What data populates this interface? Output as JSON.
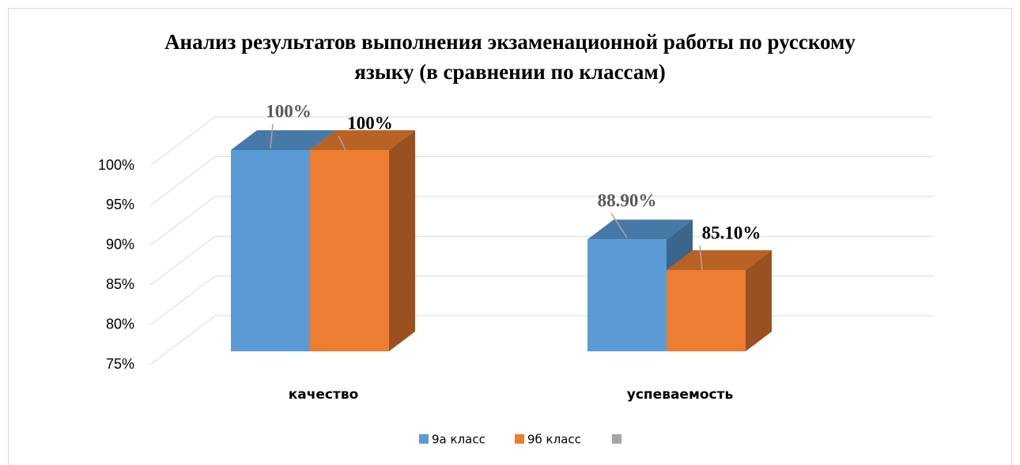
{
  "chart_data": {
    "type": "bar3d",
    "title": "Анализ результатов выполнения экзаменационной работы по русскому языку (в сравнении по классам)",
    "categories": [
      "качество",
      "успеваемость"
    ],
    "series": [
      {
        "name": "9а класс",
        "color": "#5b9bd5",
        "values": [
          100,
          88.9
        ],
        "value_labels": [
          "100%",
          "88.90%"
        ]
      },
      {
        "name": "9б класс",
        "color": "#ed7d31",
        "values": [
          100,
          85.1
        ],
        "value_labels": [
          "100%",
          "85.10%"
        ]
      },
      {
        "color": "#a5a5a5",
        "values": [
          null,
          null
        ]
      }
    ],
    "ylim": [
      75,
      100
    ],
    "yticks": [
      {
        "value": 75,
        "label": "75%"
      },
      {
        "value": 80,
        "label": "80%"
      },
      {
        "value": 85,
        "label": "85%"
      },
      {
        "value": 90,
        "label": "90%"
      },
      {
        "value": 95,
        "label": "95%"
      },
      {
        "value": 100,
        "label": "100%"
      }
    ],
    "grid": true
  }
}
